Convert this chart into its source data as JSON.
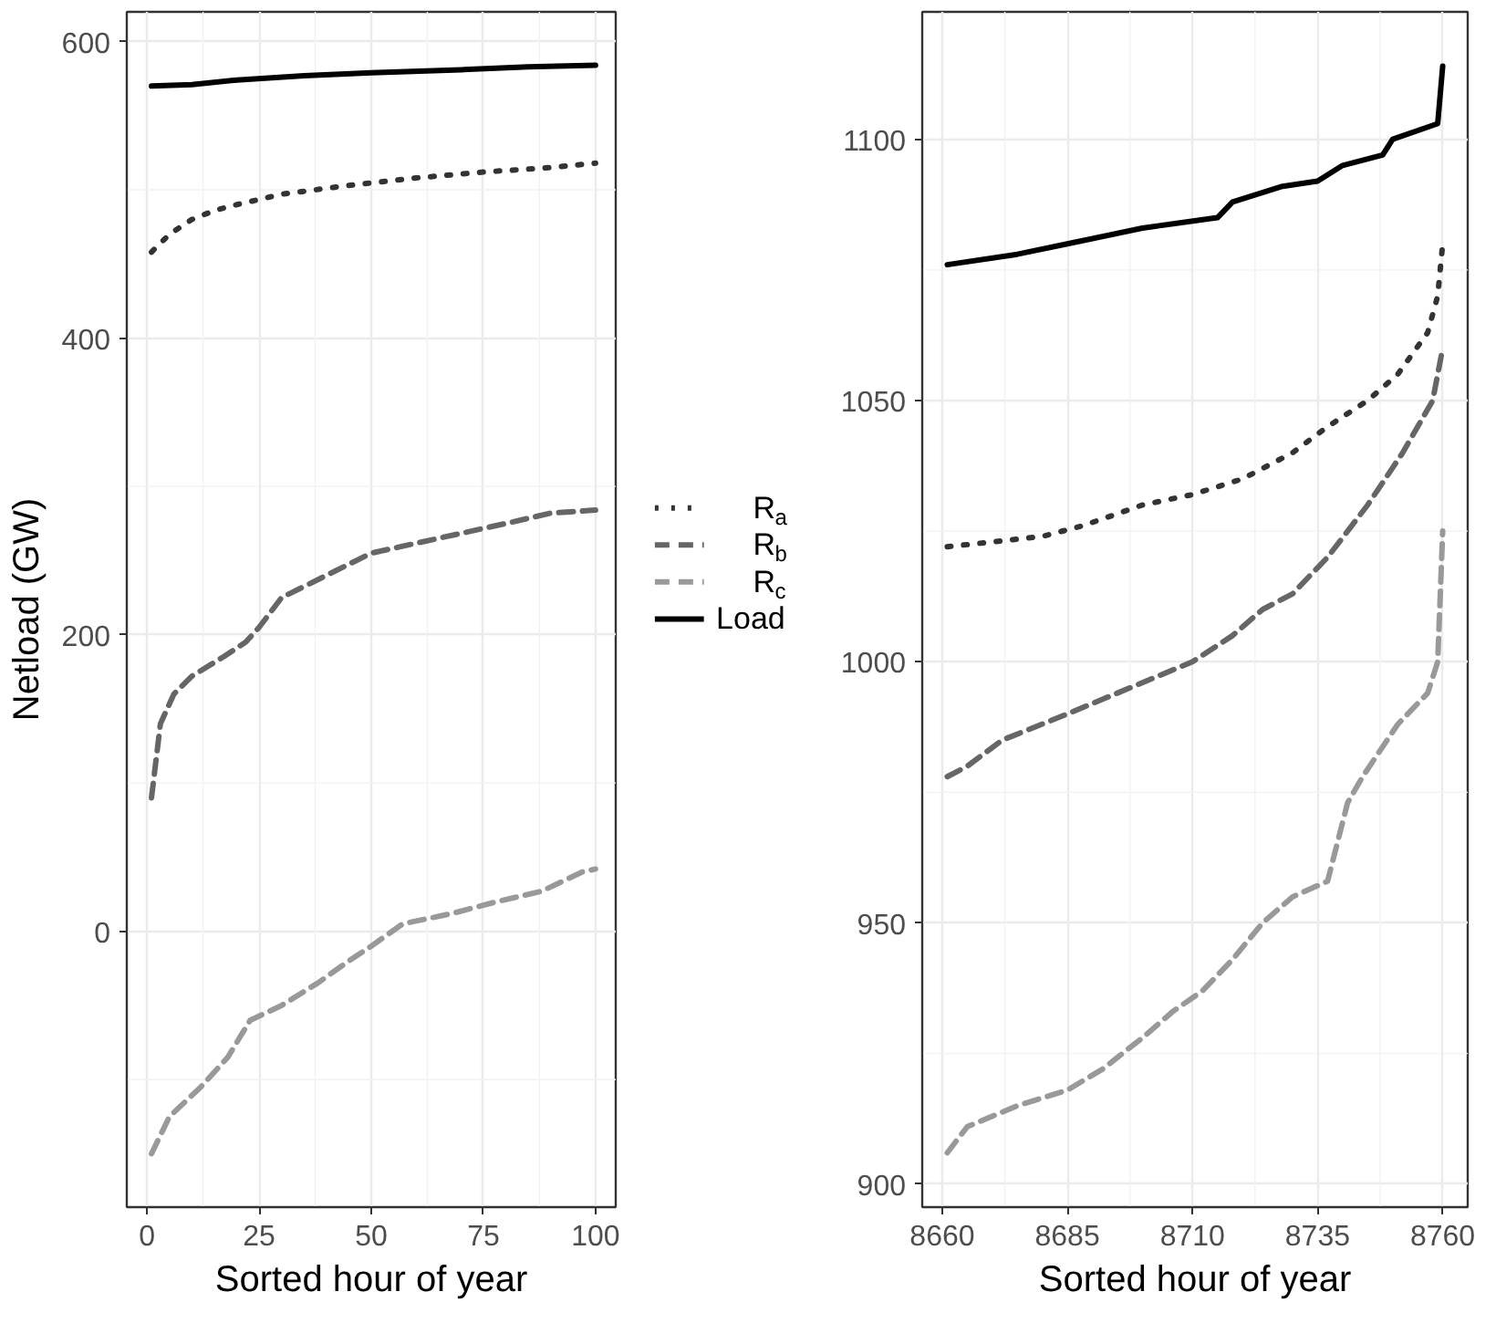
{
  "chart_data": [
    {
      "type": "line",
      "xlabel": "Sorted hour of year",
      "ylabel": "Netload (GW)",
      "xlim": [
        -4.5,
        104.5
      ],
      "ylim": [
        -186,
        620
      ],
      "xticks": [
        0,
        25,
        50,
        75,
        100
      ],
      "yticks": [
        0,
        200,
        400,
        600
      ],
      "grid": true,
      "legend": "right",
      "series": [
        {
          "name": "R$_{a}$",
          "color": "#333333",
          "line_style": "dotted",
          "x": [
            1,
            5,
            10,
            15,
            20,
            30,
            45,
            60,
            75,
            90,
            100
          ],
          "values": [
            458,
            470,
            480,
            486,
            490,
            497,
            503,
            508,
            512,
            515,
            518
          ]
        },
        {
          "name": "R$_{b}$",
          "color": "#666666",
          "line_style": "dashed",
          "x": [
            1,
            3,
            6,
            10,
            17,
            22,
            25,
            30,
            40,
            50,
            65,
            80,
            90,
            100
          ],
          "values": [
            90,
            140,
            160,
            172,
            185,
            195,
            205,
            225,
            240,
            255,
            265,
            275,
            282,
            284
          ]
        },
        {
          "name": "R$_{c}$",
          "color": "#999999",
          "line_style": "dashed",
          "x": [
            1,
            5,
            12,
            18,
            23,
            30,
            38,
            45,
            50,
            57,
            68,
            78,
            88,
            97,
            100
          ],
          "values": [
            -150,
            -125,
            -105,
            -85,
            -60,
            -50,
            -35,
            -20,
            -10,
            5,
            12,
            20,
            27,
            40,
            42
          ]
        },
        {
          "name": "Load",
          "color": "#000000",
          "line_style": "solid",
          "x": [
            1,
            10,
            20,
            35,
            50,
            70,
            85,
            100
          ],
          "values": [
            570,
            571,
            574,
            577,
            579,
            581,
            583,
            584
          ]
        }
      ]
    },
    {
      "type": "line",
      "xlabel": "Sorted hour of year",
      "xlim": [
        8656,
        8765
      ],
      "ylim": [
        895.6,
        1124.4
      ],
      "xticks": [
        8660,
        8685,
        8710,
        8735,
        8760
      ],
      "yticks": [
        900,
        950,
        1000,
        1050,
        1100
      ],
      "grid": true,
      "series": [
        {
          "color": "#333333",
          "line_style": "dotted",
          "x": [
            8661,
            8680,
            8688,
            8700,
            8710,
            8720,
            8730,
            8737,
            8745,
            8751,
            8757,
            8759,
            8760
          ],
          "values": [
            1022,
            1024,
            1026,
            1030,
            1032,
            1035,
            1040,
            1045,
            1050,
            1055,
            1063,
            1070,
            1080
          ]
        },
        {
          "color": "#666666",
          "line_style": "dashed",
          "x": [
            8661,
            8665,
            8672,
            8685,
            8695,
            8710,
            8718,
            8724,
            8730,
            8737,
            8745,
            8752,
            8758,
            8760
          ],
          "values": [
            978,
            980,
            985,
            990,
            994,
            1000,
            1005,
            1010,
            1013,
            1020,
            1030,
            1040,
            1050,
            1060
          ]
        },
        {
          "color": "#999999",
          "line_style": "dashed",
          "x": [
            8661,
            8665,
            8675,
            8685,
            8692,
            8700,
            8706,
            8712,
            8718,
            8724,
            8730,
            8737,
            8741,
            8744,
            8751,
            8757,
            8759,
            8760
          ],
          "values": [
            906,
            911,
            915,
            918,
            922,
            928,
            933,
            937,
            943,
            950,
            955,
            958,
            973,
            978,
            988,
            994,
            1000,
            1025
          ]
        },
        {
          "color": "#000000",
          "line_style": "solid",
          "x": [
            8661,
            8675,
            8685,
            8700,
            8715,
            8718,
            8728,
            8735,
            8740,
            8748,
            8750,
            8759,
            8760
          ],
          "values": [
            1076,
            1078,
            1080,
            1083,
            1085,
            1088,
            1091,
            1092,
            1095,
            1097,
            1100,
            1103,
            1114
          ]
        }
      ]
    }
  ]
}
